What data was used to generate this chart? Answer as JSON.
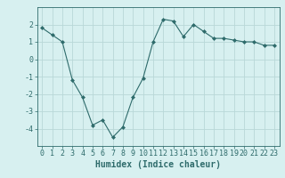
{
  "x": [
    0,
    1,
    2,
    3,
    4,
    5,
    6,
    7,
    8,
    9,
    10,
    11,
    12,
    13,
    14,
    15,
    16,
    17,
    18,
    19,
    20,
    21,
    22,
    23
  ],
  "y": [
    1.8,
    1.4,
    1.0,
    -1.2,
    -2.2,
    -3.8,
    -3.5,
    -4.5,
    -3.9,
    -2.2,
    -1.1,
    1.0,
    2.3,
    2.2,
    1.3,
    2.0,
    1.6,
    1.2,
    1.2,
    1.1,
    1.0,
    1.0,
    0.8,
    0.8
  ],
  "line_color": "#2e6b6b",
  "marker": "D",
  "marker_size": 2.0,
  "bg_color": "#d7f0f0",
  "grid_color": "#b8d8d8",
  "xlabel": "Humidex (Indice chaleur)",
  "ylim": [
    -5,
    3
  ],
  "xlim": [
    -0.5,
    23.5
  ],
  "yticks": [
    -4,
    -3,
    -2,
    -1,
    0,
    1,
    2
  ],
  "xticks": [
    0,
    1,
    2,
    3,
    4,
    5,
    6,
    7,
    8,
    9,
    10,
    11,
    12,
    13,
    14,
    15,
    16,
    17,
    18,
    19,
    20,
    21,
    22,
    23
  ],
  "xtick_labels": [
    "0",
    "1",
    "2",
    "3",
    "4",
    "5",
    "6",
    "7",
    "8",
    "9",
    "10",
    "11",
    "12",
    "13",
    "14",
    "15",
    "16",
    "17",
    "18",
    "19",
    "20",
    "21",
    "22",
    "23"
  ],
  "xlabel_fontsize": 7,
  "tick_fontsize": 6
}
